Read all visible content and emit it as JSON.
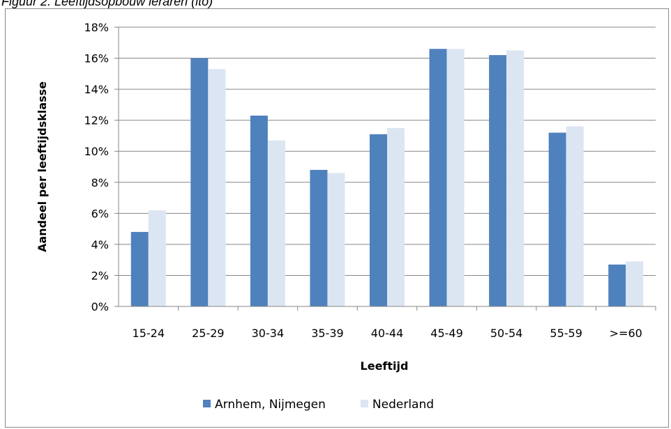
{
  "figure": {
    "caption": "Figuur 2. Leeftijdsopbouw leraren (ito)"
  },
  "chart_data": {
    "type": "bar",
    "categories": [
      "15-24",
      "25-29",
      "30-34",
      "35-39",
      "40-44",
      "45-49",
      "50-54",
      "55-59",
      ">=60"
    ],
    "series": [
      {
        "name": "Arnhem, Nijmegen",
        "color": "#4f81bd",
        "values": [
          4.8,
          16.0,
          12.3,
          8.8,
          11.1,
          16.6,
          16.2,
          11.2,
          2.7
        ]
      },
      {
        "name": "Nederland",
        "color": "#dce6f2",
        "values": [
          6.2,
          15.3,
          10.7,
          8.6,
          11.5,
          16.6,
          16.5,
          11.6,
          2.9
        ]
      }
    ],
    "title": "",
    "xlabel": "Leeftijd",
    "ylabel": "Aandeel per leeftijdsklasse",
    "ylim": [
      0,
      18
    ],
    "yticks": [
      0,
      2,
      4,
      6,
      8,
      10,
      12,
      14,
      16,
      18
    ],
    "ytick_labels": [
      "0%",
      "2%",
      "4%",
      "6%",
      "8%",
      "10%",
      "12%",
      "14%",
      "16%",
      "18%"
    ],
    "grid": true,
    "legend_position": "bottom"
  }
}
